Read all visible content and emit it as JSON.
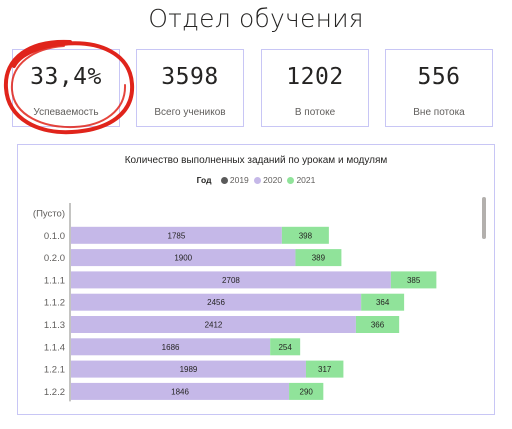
{
  "page": {
    "title": "Отдел обучения"
  },
  "kpis": [
    {
      "value": "33,4%",
      "label": "Успеваемость"
    },
    {
      "value": "3598",
      "label": "Всего учеников"
    },
    {
      "value": "1202",
      "label": "В потоке"
    },
    {
      "value": "556",
      "label": "Вне потока"
    }
  ],
  "chart": {
    "title": "Количество выполненных заданий по урокам и модулям",
    "legend_title": "Год",
    "legend": [
      {
        "name": "2019",
        "color": "#5a5a5a"
      },
      {
        "name": "2020",
        "color": "#c5b8e8"
      },
      {
        "name": "2021",
        "color": "#90e39a"
      }
    ]
  },
  "chart_data": {
    "type": "bar",
    "orientation": "horizontal",
    "stacked": true,
    "title": "Количество выполненных заданий по урокам и модулям",
    "categories": [
      "(Пусто)",
      "0.1.0",
      "0.2.0",
      "1.1.1",
      "1.1.2",
      "1.1.3",
      "1.1.4",
      "1.2.1",
      "1.2.2"
    ],
    "series": [
      {
        "name": "2019",
        "color": "#5a5a5a",
        "values": [
          0,
          0,
          0,
          0,
          0,
          0,
          0,
          0,
          0
        ]
      },
      {
        "name": "2020",
        "color": "#c5b8e8",
        "values": [
          0,
          1785,
          1900,
          2708,
          2456,
          2412,
          1686,
          1989,
          1846
        ]
      },
      {
        "name": "2021",
        "color": "#90e39a",
        "values": [
          0,
          398,
          389,
          385,
          364,
          366,
          254,
          317,
          290
        ]
      }
    ],
    "legend_position": "top-center",
    "grid": false
  }
}
